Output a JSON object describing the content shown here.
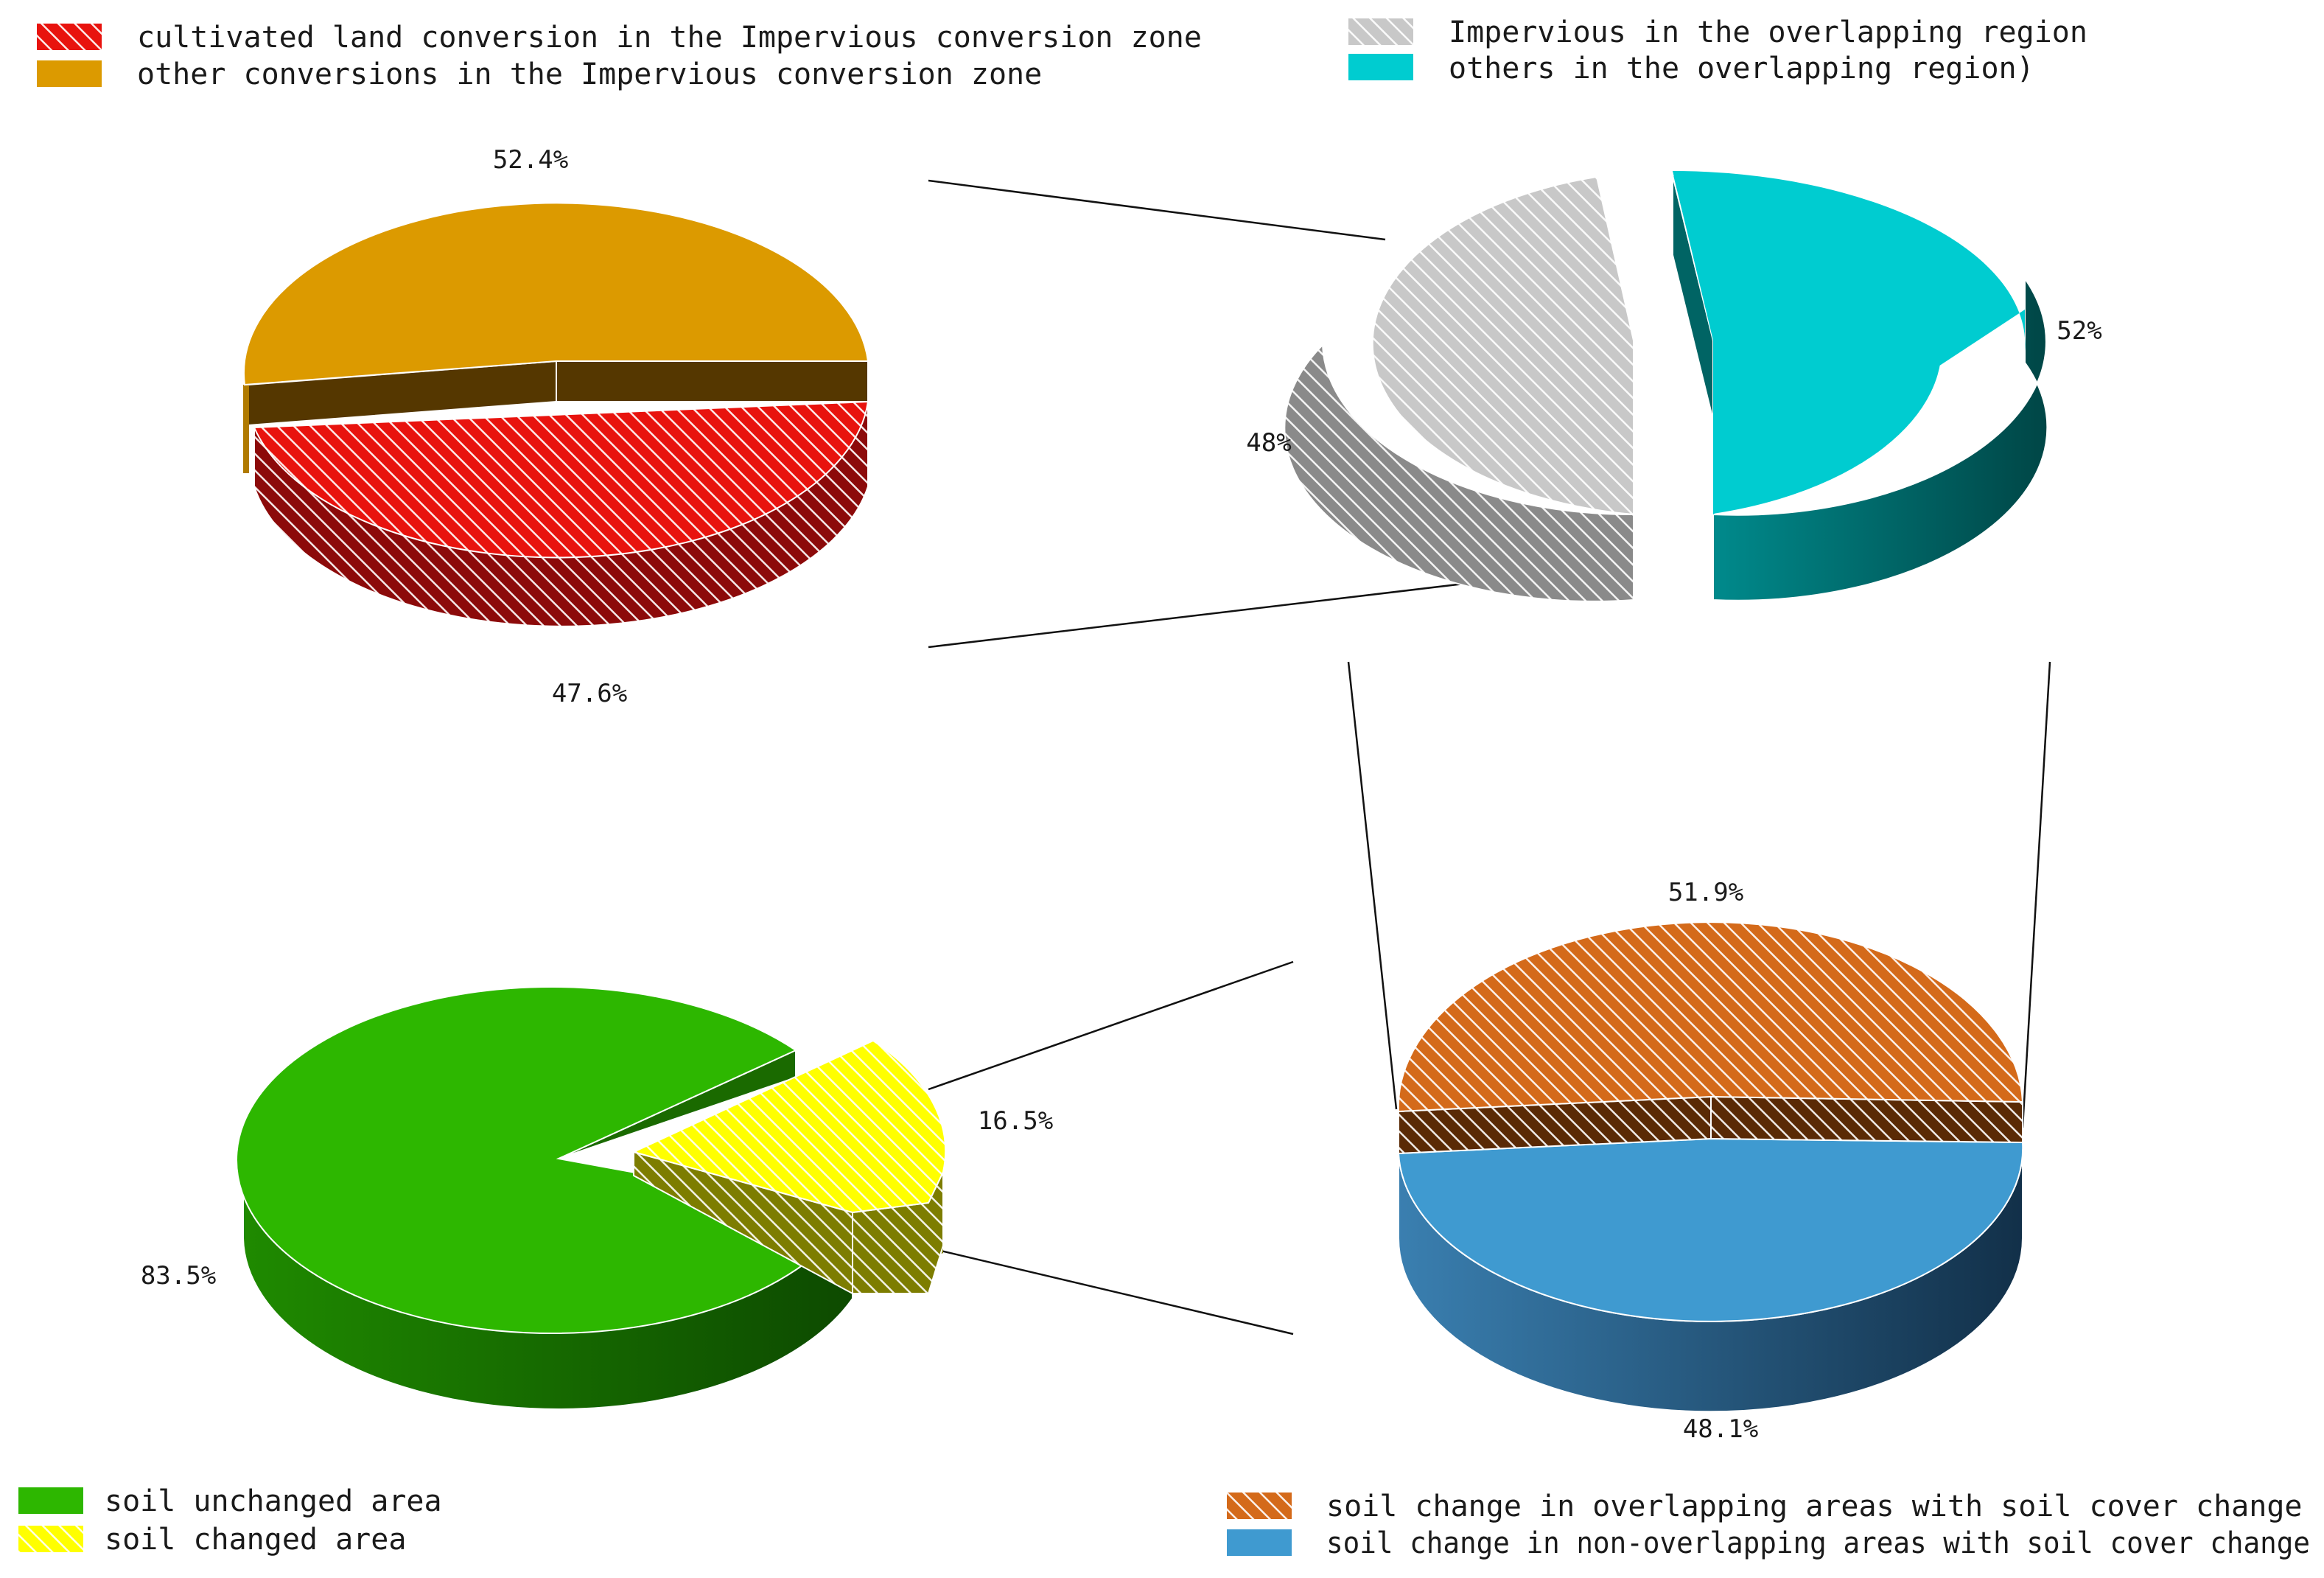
{
  "chart_data": [
    {
      "type": "pie",
      "categories": [
        "cultivated land conversion in the Impervious conversion zone",
        "other conversions in the Impervious conversion zone"
      ],
      "values": [
        47.6,
        52.4
      ],
      "labels": [
        "47.6%",
        "52.4%"
      ],
      "colors": [
        "#e8130e",
        "#dc9a00"
      ],
      "hatched": [
        true,
        false
      ],
      "legend_placement": "top-left"
    },
    {
      "type": "pie",
      "categories": [
        "Impervious in the overlapping region",
        "others in the overlapping region)"
      ],
      "values": [
        48,
        52
      ],
      "labels": [
        "48%",
        "52%"
      ],
      "colors": [
        "#c8c8c8",
        "#00ccd0"
      ],
      "hatched": [
        true,
        false
      ],
      "exploded": true,
      "legend_placement": "top-right"
    },
    {
      "type": "pie",
      "categories": [
        "soil unchanged area",
        "soil changed area"
      ],
      "values": [
        83.5,
        16.5
      ],
      "labels": [
        "83.5%",
        "16.5%"
      ],
      "colors": [
        "#2db700",
        "#ffff00"
      ],
      "hatched": [
        false,
        true
      ],
      "exploded": true,
      "legend_placement": "bottom-left"
    },
    {
      "type": "pie",
      "categories": [
        "soil change in overlapping areas with soil cover change",
        "soil change in non-overlapping areas with soil cover change"
      ],
      "values": [
        51.9,
        48.1
      ],
      "labels": [
        "51.9%",
        "48.1%"
      ],
      "colors": [
        "#d46a1a",
        "#3f9ad0"
      ],
      "hatched": [
        true,
        false
      ],
      "legend_placement": "bottom-right"
    }
  ]
}
